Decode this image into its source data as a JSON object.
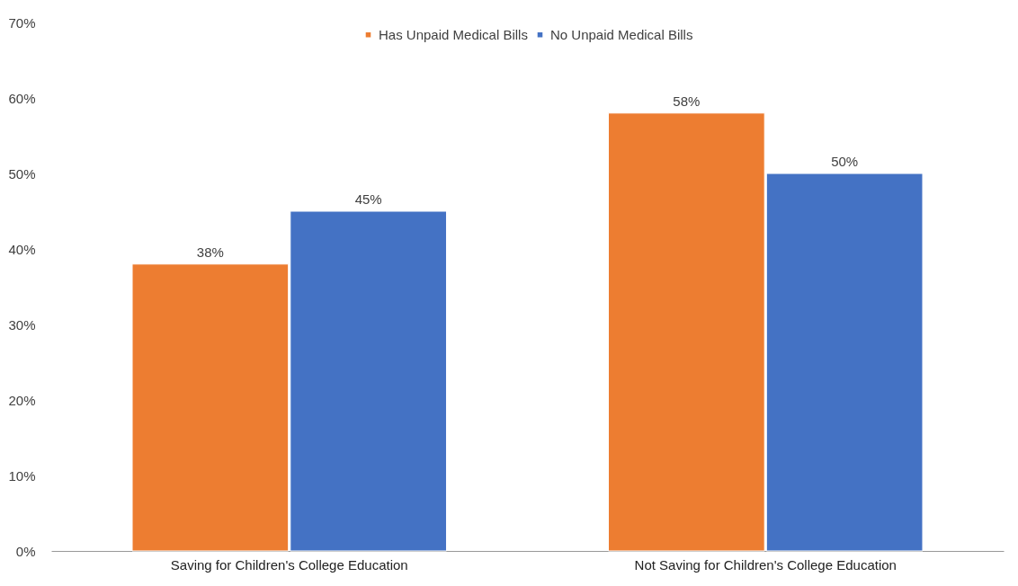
{
  "chart_data": {
    "type": "bar",
    "categories": [
      "Saving for Children's College Education",
      "Not Saving for Children's College Education"
    ],
    "series": [
      {
        "name": "Has Unpaid Medical Bills",
        "color": "#ed7d31",
        "values": [
          38,
          58
        ],
        "value_labels": [
          "38%",
          "58%"
        ]
      },
      {
        "name": "No Unpaid Medical Bills",
        "color": "#4472c4",
        "values": [
          45,
          50
        ],
        "value_labels": [
          "45%",
          "50%"
        ]
      }
    ],
    "ylim": [
      0,
      70
    ],
    "yticks": [
      {
        "value": 0,
        "label": "0%"
      },
      {
        "value": 10,
        "label": "10%"
      },
      {
        "value": 20,
        "label": "20%"
      },
      {
        "value": 30,
        "label": "30%"
      },
      {
        "value": 40,
        "label": "40%"
      },
      {
        "value": 50,
        "label": "50%"
      },
      {
        "value": 60,
        "label": "60%"
      },
      {
        "value": 70,
        "label": "70%"
      }
    ],
    "grid": false,
    "legend": "top"
  }
}
